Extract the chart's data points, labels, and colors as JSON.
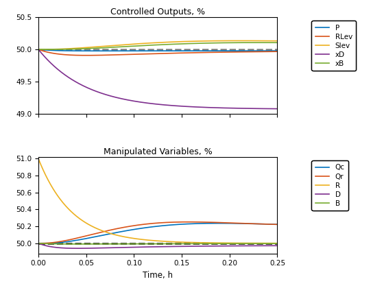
{
  "title1": "Controlled Outputs, %",
  "title2": "Manipulated Variables, %",
  "xlabel": "Time, h",
  "xlim": [
    0,
    0.25
  ],
  "ylim1": [
    49,
    50.5
  ],
  "ylim2": [
    49.88,
    51.02
  ],
  "yticks1": [
    49,
    49.5,
    50,
    50.5
  ],
  "yticks2": [
    50.0,
    50.2,
    50.4,
    50.6,
    50.8,
    51.0
  ],
  "xticks": [
    0,
    0.05,
    0.1,
    0.15,
    0.2,
    0.25
  ],
  "legend1": [
    "P",
    "RLev",
    "Slev",
    "xD",
    "xB"
  ],
  "legend2": [
    "Qc",
    "Qr",
    "R",
    "D",
    "B"
  ],
  "colors1": {
    "P": "#0072BD",
    "RLev": "#D95319",
    "Slev": "#EDB120",
    "xD": "#7E2F8E",
    "xB": "#77AC30"
  },
  "colors2": {
    "Qc": "#0072BD",
    "Qr": "#D95319",
    "R": "#EDB120",
    "D": "#7E2F8E",
    "B": "#77AC30"
  },
  "dashed_color1": "#808080",
  "dashed_color2": "#000000",
  "dashed_value": 50.0,
  "figsize": [
    5.6,
    4.2
  ],
  "dpi": 100
}
